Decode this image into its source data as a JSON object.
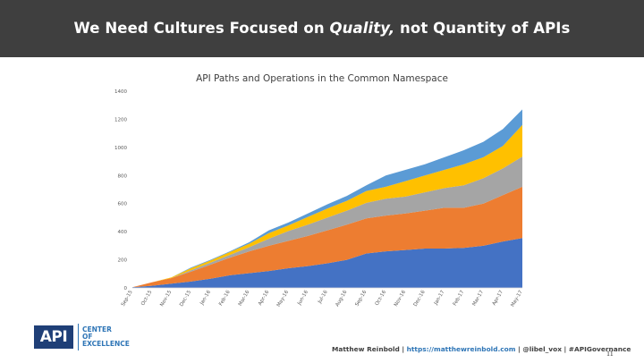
{
  "slide": {
    "title_prefix": "We Need Cultures Focused on ",
    "title_emphasis": "Quality,",
    "title_suffix": " not Quantity of APIs",
    "page_number": "11"
  },
  "footer": {
    "logo_mark": "API",
    "logo_line1": "CENTER",
    "logo_line2": "OF",
    "logo_line3": "EXCELLENCE",
    "author": "Matthew Reinbold | ",
    "link": "https://matthewreinbold.com",
    "handles": " | @libel_vox | #APIGovernance"
  },
  "chart_data": {
    "type": "area",
    "stacked": true,
    "title": "API Paths and Operations in the Common Namespace",
    "xlabel": "",
    "ylabel": "",
    "ylim": [
      0,
      1400
    ],
    "yticks": [
      0,
      200,
      400,
      600,
      800,
      1000,
      1200,
      1400
    ],
    "grid": false,
    "legend": "none",
    "categories": [
      "Sep-15",
      "Oct-15",
      "Nov-15",
      "Dec-15",
      "Jan-16",
      "Feb-16",
      "Mar-16",
      "Apr-16",
      "May-16",
      "Jun-16",
      "Jul-16",
      "Aug-16",
      "Sep-16",
      "Oct-16",
      "Nov-16",
      "Dec-16",
      "Jan-17",
      "Feb-17",
      "Mar-17",
      "Apr-17",
      "May-17"
    ],
    "series": [
      {
        "color": "#4472c4",
        "values": [
          5,
          15,
          30,
          45,
          65,
          90,
          105,
          120,
          140,
          155,
          175,
          200,
          245,
          260,
          270,
          280,
          280,
          285,
          300,
          330,
          355
        ]
      },
      {
        "color": "#ed7d31",
        "values": [
          0,
          25,
          40,
          70,
          100,
          125,
          155,
          180,
          195,
          215,
          235,
          250,
          250,
          255,
          260,
          270,
          290,
          285,
          300,
          330,
          365
        ]
      },
      {
        "color": "#a5a5a5",
        "values": [
          0,
          0,
          0,
          10,
          15,
          20,
          30,
          50,
          70,
          80,
          90,
          100,
          110,
          120,
          120,
          130,
          140,
          160,
          180,
          190,
          215
        ]
      },
      {
        "color": "#ffc000",
        "values": [
          0,
          0,
          5,
          15,
          15,
          20,
          25,
          40,
          40,
          55,
          65,
          70,
          85,
          85,
          110,
          120,
          130,
          150,
          150,
          160,
          225
        ]
      },
      {
        "color": "#5b9bd5",
        "values": [
          0,
          0,
          0,
          5,
          5,
          5,
          10,
          20,
          20,
          25,
          30,
          35,
          40,
          80,
          80,
          80,
          90,
          100,
          110,
          120,
          110
        ]
      }
    ]
  }
}
